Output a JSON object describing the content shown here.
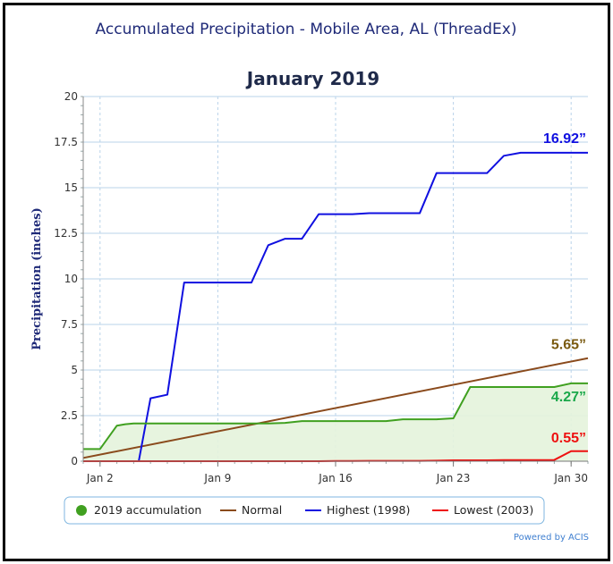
{
  "title": "Accumulated Precipitation - Mobile Area, AL (ThreadEx)",
  "subtitle": "January 2019",
  "powered_by": "Powered by ACIS",
  "colors": {
    "accum_line": "#40a020",
    "accum_fill": "#e4f3dc",
    "normal": "#8a4a1c",
    "highest": "#1010e0",
    "lowest": "#ee1010",
    "axis_text": "#1f2a78",
    "grid": "#b9d3ea",
    "ann_highest": "#1010e0",
    "ann_normal": "#7a5a10",
    "ann_accum": "#1aa84a",
    "ann_lowest": "#ee1010"
  },
  "chart_data": {
    "type": "line",
    "ylabel": "Precipitation (inches)",
    "xlabel": "",
    "xlim": [
      1,
      31
    ],
    "ylim": [
      0,
      20
    ],
    "y_ticks": [
      0,
      2.5,
      5,
      7.5,
      10,
      12.5,
      15,
      17.5,
      20
    ],
    "y_tick_labels": [
      "0",
      "2.5",
      "5",
      "7.5",
      "10",
      "12.5",
      "15",
      "17.5",
      "20"
    ],
    "x_ticks": [
      2,
      9,
      16,
      23,
      30
    ],
    "x_tick_labels": [
      "Jan 2",
      "Jan 9",
      "Jan 16",
      "Jan 23",
      "Jan 30"
    ],
    "grid": true,
    "legend_position": "bottom",
    "series": [
      {
        "name": "2019 accumulation",
        "key": "accum",
        "area": true,
        "x": [
          1,
          2,
          3,
          3.5,
          4,
          5,
          6,
          7,
          8,
          9,
          10,
          11,
          12,
          13,
          14,
          15,
          16,
          17,
          18,
          19,
          20,
          21,
          22,
          23,
          24,
          25,
          26,
          27,
          28,
          29,
          30,
          31
        ],
        "y": [
          0.67,
          0.67,
          1.95,
          2.03,
          2.07,
          2.07,
          2.07,
          2.07,
          2.07,
          2.07,
          2.07,
          2.07,
          2.07,
          2.1,
          2.2,
          2.2,
          2.2,
          2.2,
          2.2,
          2.2,
          2.3,
          2.3,
          2.3,
          2.35,
          4.07,
          4.07,
          4.07,
          4.07,
          4.07,
          4.07,
          4.27,
          4.27
        ]
      },
      {
        "name": "Normal",
        "key": "normal",
        "x": [
          1,
          31
        ],
        "y": [
          0.18,
          5.65
        ]
      },
      {
        "name": "Highest (1998)",
        "key": "highest",
        "x": [
          1,
          2,
          3,
          4,
          4.3,
          5,
          6,
          7,
          8,
          9,
          10,
          11,
          12,
          13,
          14,
          15,
          16,
          17,
          18,
          19,
          20,
          21,
          22,
          23,
          24,
          25,
          26,
          27,
          28,
          29,
          30,
          31
        ],
        "y": [
          0,
          0,
          0,
          0,
          0,
          3.45,
          3.65,
          9.8,
          9.8,
          9.8,
          9.8,
          9.8,
          11.85,
          12.2,
          12.2,
          13.55,
          13.55,
          13.55,
          13.6,
          13.6,
          13.6,
          13.6,
          15.8,
          15.8,
          15.8,
          15.8,
          16.75,
          16.92,
          16.92,
          16.92,
          16.92,
          16.92
        ]
      },
      {
        "name": "Lowest (2003)",
        "key": "lowest",
        "x": [
          1,
          2,
          3,
          4,
          5,
          6,
          7,
          8,
          9,
          10,
          11,
          12,
          13,
          14,
          15,
          16,
          17,
          18,
          19,
          20,
          21,
          22,
          23,
          24,
          25,
          26,
          27,
          28,
          29,
          30,
          31
        ],
        "y": [
          0,
          0,
          0,
          0,
          0,
          0,
          0,
          0,
          0,
          0,
          0,
          0,
          0,
          0,
          0,
          0.01,
          0.01,
          0.02,
          0.02,
          0.02,
          0.02,
          0.03,
          0.05,
          0.05,
          0.05,
          0.06,
          0.06,
          0.06,
          0.07,
          0.55,
          0.55
        ]
      }
    ],
    "annotations": [
      {
        "key": "highest",
        "text": "16.92”",
        "x": 31,
        "y": 16.92
      },
      {
        "key": "normal",
        "text": "5.65”",
        "x": 31,
        "y": 5.65
      },
      {
        "key": "accum",
        "text": "4.27”",
        "x": 31,
        "y": 4.27
      },
      {
        "key": "lowest",
        "text": "0.55”",
        "x": 31,
        "y": 0.55
      }
    ]
  }
}
